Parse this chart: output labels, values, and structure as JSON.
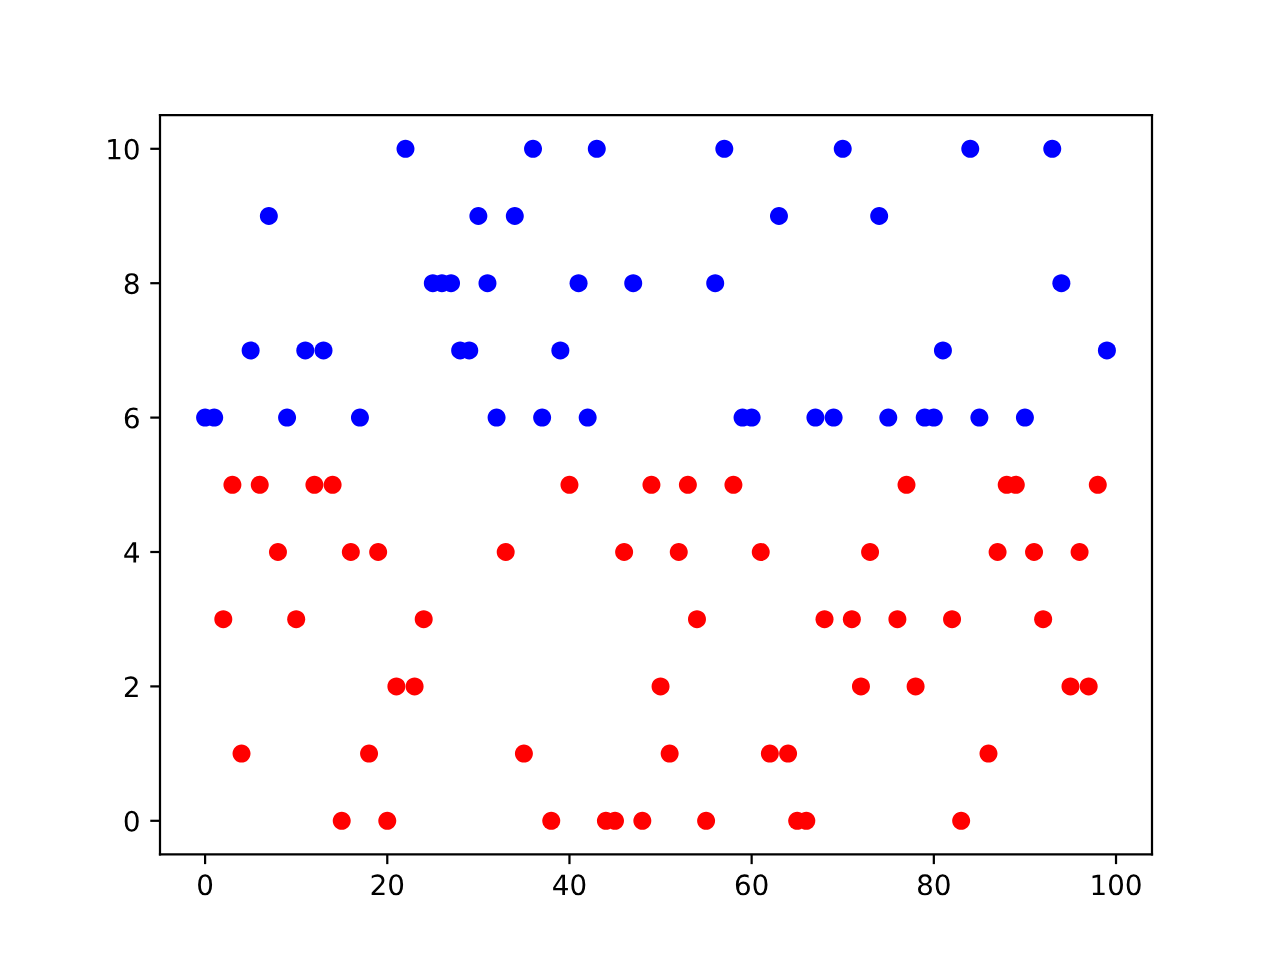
{
  "chart_data": {
    "type": "scatter",
    "series": [
      {
        "color": "#0000ff",
        "x": [
          0,
          1,
          5,
          7,
          9,
          11,
          13,
          17,
          22,
          25,
          26,
          27,
          28,
          29,
          30,
          31,
          32,
          34,
          36,
          37,
          39,
          41,
          42,
          43,
          47,
          56,
          57,
          59,
          60,
          63,
          67,
          69,
          70,
          74,
          75,
          79,
          80,
          81,
          84,
          85,
          90,
          93,
          94,
          99
        ],
        "values": [
          6,
          6,
          7,
          9,
          6,
          7,
          7,
          6,
          10,
          8,
          8,
          8,
          7,
          7,
          9,
          8,
          6,
          9,
          10,
          6,
          7,
          8,
          6,
          10,
          8,
          8,
          10,
          6,
          6,
          9,
          6,
          6,
          10,
          9,
          6,
          6,
          6,
          7,
          10,
          6,
          6,
          10,
          8,
          7
        ]
      },
      {
        "color": "#ff0000",
        "x": [
          2,
          3,
          4,
          6,
          8,
          10,
          12,
          14,
          15,
          16,
          18,
          19,
          20,
          21,
          23,
          24,
          33,
          35,
          38,
          40,
          44,
          45,
          46,
          48,
          49,
          50,
          51,
          52,
          53,
          54,
          55,
          58,
          61,
          62,
          64,
          65,
          66,
          68,
          71,
          72,
          73,
          76,
          77,
          78,
          82,
          83,
          86,
          87,
          88,
          89,
          91,
          92,
          95,
          96,
          97,
          98
        ],
        "values": [
          3,
          5,
          1,
          5,
          4,
          3,
          5,
          5,
          0,
          4,
          1,
          4,
          0,
          2,
          2,
          3,
          4,
          1,
          0,
          5,
          0,
          0,
          4,
          0,
          5,
          2,
          1,
          4,
          5,
          3,
          0,
          5,
          4,
          1,
          1,
          0,
          0,
          3,
          3,
          2,
          4,
          3,
          5,
          2,
          3,
          0,
          1,
          4,
          5,
          5,
          4,
          3,
          2,
          4,
          2,
          5
        ]
      }
    ],
    "marker": "circle",
    "xlim": [
      -4.95,
      103.95
    ],
    "ylim": [
      -0.5,
      10.5
    ],
    "xticks": [
      0,
      20,
      40,
      60,
      80,
      100
    ],
    "yticks": [
      0,
      2,
      4,
      6,
      8,
      10
    ],
    "grid": false,
    "legend": false
  }
}
